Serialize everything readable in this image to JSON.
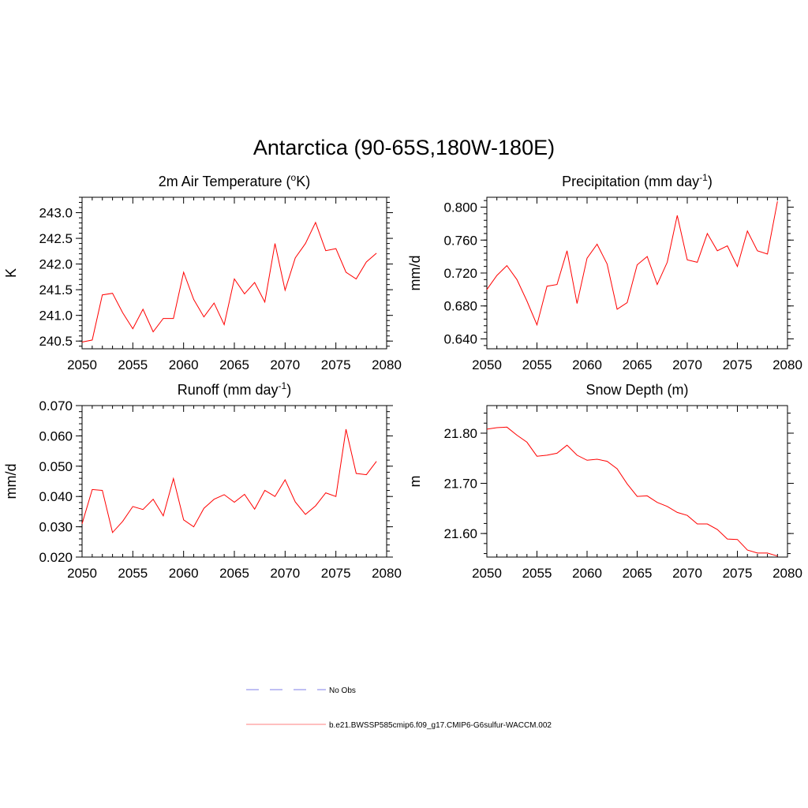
{
  "figure": {
    "title": "Antarctica (90-65S,180W-180E)"
  },
  "legend": {
    "items": [
      {
        "label": "No Obs",
        "color": "#9999ee",
        "dash": true
      },
      {
        "label": "b.e21.BWSSP585cmip6.f09_g17.CMIP6-G6sulfur-WACCM.002",
        "color": "#ff9999",
        "dash": false
      }
    ]
  },
  "chart_data": [
    {
      "type": "line",
      "title": "2m Air Temperature (°K)",
      "title_base": "2m Air Temperature (",
      "title_sup": "o",
      "title_tail": "K)",
      "ylabel": "K",
      "xlim": [
        2050,
        2080
      ],
      "ylim": [
        240.35,
        243.3
      ],
      "xticks": [
        2050,
        2055,
        2060,
        2065,
        2070,
        2075,
        2080
      ],
      "yticks": [
        240.5,
        241.0,
        241.5,
        242.0,
        242.5,
        243.0
      ],
      "ytick_decimals": 1,
      "y_minor": 0.1,
      "color": "#ff0000",
      "series": [
        {
          "name": "b.e21.BWSSP585cmip6.f09_g17.CMIP6-G6sulfur-WACCM.002",
          "x": [
            2050,
            2051,
            2052,
            2053,
            2054,
            2055,
            2056,
            2057,
            2058,
            2059,
            2060,
            2061,
            2062,
            2063,
            2064,
            2065,
            2066,
            2067,
            2068,
            2069,
            2070,
            2071,
            2072,
            2073,
            2074,
            2075,
            2076,
            2077,
            2078,
            2079
          ],
          "values": [
            240.48,
            240.52,
            241.4,
            241.43,
            241.05,
            240.74,
            241.12,
            240.68,
            240.94,
            240.94,
            241.84,
            241.31,
            240.97,
            241.24,
            240.82,
            241.71,
            241.42,
            241.64,
            241.26,
            242.4,
            241.49,
            242.12,
            242.4,
            242.81,
            242.26,
            242.3,
            241.84,
            241.71,
            242.04,
            242.21
          ]
        }
      ]
    },
    {
      "type": "line",
      "title": "Precipitation (mm day-1)",
      "title_base": "Precipitation (mm day",
      "title_sup": "-1",
      "title_tail": ")",
      "ylabel": "mm/d",
      "xlim": [
        2050,
        2080
      ],
      "ylim": [
        0.628,
        0.812
      ],
      "xticks": [
        2050,
        2055,
        2060,
        2065,
        2070,
        2075,
        2080
      ],
      "yticks": [
        0.64,
        0.68,
        0.72,
        0.76,
        0.8
      ],
      "ytick_decimals": 3,
      "y_minor": 0.008,
      "color": "#ff0000",
      "series": [
        {
          "name": "b.e21.BWSSP585cmip6.f09_g17.CMIP6-G6sulfur-WACCM.002",
          "x": [
            2050,
            2051,
            2052,
            2053,
            2054,
            2055,
            2056,
            2057,
            2058,
            2059,
            2060,
            2061,
            2062,
            2063,
            2064,
            2065,
            2066,
            2067,
            2068,
            2069,
            2070,
            2071,
            2072,
            2073,
            2074,
            2075,
            2076,
            2077,
            2078,
            2079
          ],
          "values": [
            0.7,
            0.717,
            0.729,
            0.712,
            0.686,
            0.657,
            0.704,
            0.706,
            0.747,
            0.683,
            0.738,
            0.755,
            0.731,
            0.676,
            0.684,
            0.73,
            0.74,
            0.706,
            0.733,
            0.79,
            0.736,
            0.733,
            0.768,
            0.747,
            0.753,
            0.728,
            0.771,
            0.747,
            0.743,
            0.807
          ]
        }
      ]
    },
    {
      "type": "line",
      "title": "Runoff (mm day-1)",
      "title_base": "Runoff (mm day",
      "title_sup": "-1",
      "title_tail": ")",
      "ylabel": "mm/d",
      "xlim": [
        2050,
        2080
      ],
      "ylim": [
        0.02,
        0.07
      ],
      "xticks": [
        2050,
        2055,
        2060,
        2065,
        2070,
        2075,
        2080
      ],
      "yticks": [
        0.02,
        0.03,
        0.04,
        0.05,
        0.06,
        0.07
      ],
      "ytick_decimals": 3,
      "y_minor": 0.002,
      "color": "#ff0000",
      "series": [
        {
          "name": "b.e21.BWSSP585cmip6.f09_g17.CMIP6-G6sulfur-WACCM.002",
          "x": [
            2050,
            2051,
            2052,
            2053,
            2054,
            2055,
            2056,
            2057,
            2058,
            2059,
            2060,
            2061,
            2062,
            2063,
            2064,
            2065,
            2066,
            2067,
            2068,
            2069,
            2070,
            2071,
            2072,
            2073,
            2074,
            2075,
            2076,
            2077,
            2078,
            2079
          ],
          "values": [
            0.031,
            0.0423,
            0.042,
            0.0281,
            0.0318,
            0.0367,
            0.0357,
            0.0391,
            0.0336,
            0.0459,
            0.0323,
            0.03,
            0.0361,
            0.0391,
            0.0406,
            0.0381,
            0.0407,
            0.0358,
            0.042,
            0.04,
            0.0455,
            0.0382,
            0.0341,
            0.0369,
            0.0412,
            0.04,
            0.0622,
            0.0476,
            0.0472,
            0.0516
          ]
        }
      ]
    },
    {
      "type": "line",
      "title": "Snow Depth (m)",
      "title_base": "Snow Depth (m)",
      "title_sup": "",
      "title_tail": "",
      "ylabel": "m",
      "xlim": [
        2050,
        2080
      ],
      "ylim": [
        21.553,
        21.855
      ],
      "xticks": [
        2050,
        2055,
        2060,
        2065,
        2070,
        2075,
        2080
      ],
      "yticks": [
        21.6,
        21.7,
        21.8
      ],
      "ytick_decimals": 2,
      "y_minor": 0.02,
      "color": "#ff0000",
      "series": [
        {
          "name": "b.e21.BWSSP585cmip6.f09_g17.CMIP6-G6sulfur-WACCM.002",
          "x": [
            2050,
            2051,
            2052,
            2053,
            2054,
            2055,
            2056,
            2057,
            2058,
            2059,
            2060,
            2061,
            2062,
            2063,
            2064,
            2065,
            2066,
            2067,
            2068,
            2069,
            2070,
            2071,
            2072,
            2073,
            2074,
            2075,
            2076,
            2077,
            2078,
            2079
          ],
          "values": [
            21.808,
            21.811,
            21.812,
            21.796,
            21.782,
            21.754,
            21.756,
            21.76,
            21.776,
            21.756,
            21.746,
            21.748,
            21.744,
            21.729,
            21.699,
            21.674,
            21.675,
            21.662,
            21.654,
            21.642,
            21.636,
            21.619,
            21.619,
            21.608,
            21.589,
            21.588,
            21.567,
            21.561,
            21.561,
            21.555
          ]
        }
      ]
    }
  ]
}
